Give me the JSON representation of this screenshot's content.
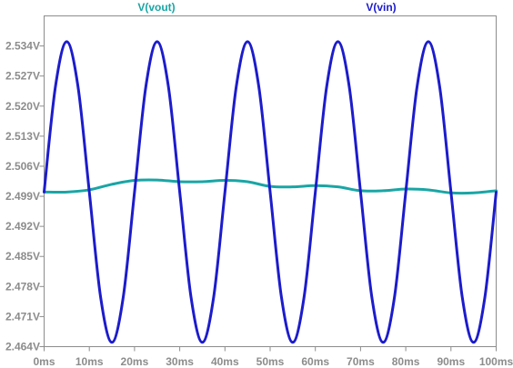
{
  "chart_data": {
    "type": "line",
    "xlim": [
      0,
      100
    ],
    "ylim": [
      2.464,
      2.541
    ],
    "x_ticks": [
      0,
      10,
      20,
      30,
      40,
      50,
      60,
      70,
      80,
      90,
      100
    ],
    "x_tick_labels": [
      "0ms",
      "10ms",
      "20ms",
      "30ms",
      "40ms",
      "50ms",
      "60ms",
      "70ms",
      "80ms",
      "90ms",
      "100ms"
    ],
    "y_ticks": [
      2.464,
      2.471,
      2.478,
      2.485,
      2.492,
      2.499,
      2.506,
      2.513,
      2.52,
      2.527,
      2.534
    ],
    "y_tick_labels": [
      "2.464V",
      "2.471V",
      "2.478V",
      "2.485V",
      "2.492V",
      "2.499V",
      "2.506V",
      "2.513V",
      "2.520V",
      "2.527V",
      "2.534V"
    ],
    "grid": false,
    "legend_position": "top",
    "series": [
      {
        "name": "V(vout)",
        "color": "#1aa5a5",
        "x": [
          0,
          5,
          10,
          15,
          20,
          25,
          30,
          35,
          40,
          45,
          50,
          55,
          60,
          65,
          70,
          75,
          80,
          85,
          90,
          95,
          100
        ],
        "y": [
          2.5,
          2.5,
          2.5005,
          2.5018,
          2.5027,
          2.5028,
          2.5024,
          2.5024,
          2.5027,
          2.5024,
          2.5013,
          2.5012,
          2.5015,
          2.5012,
          2.5003,
          2.5003,
          2.5007,
          2.5005,
          2.4998,
          2.4998,
          2.5003
        ]
      },
      {
        "name": "V(vin)",
        "color": "#1c1ccc",
        "x": [
          0,
          2.5,
          5,
          7.5,
          10,
          12.5,
          15,
          17.5,
          20,
          22.5,
          25,
          27.5,
          30,
          32.5,
          35,
          37.5,
          40,
          42.5,
          45,
          47.5,
          50,
          52.5,
          55,
          57.5,
          60,
          62.5,
          65,
          67.5,
          70,
          72.5,
          75,
          77.5,
          80,
          82.5,
          85,
          87.5,
          90,
          92.5,
          95,
          97.5,
          100
        ],
        "y": [
          2.5,
          2.5245,
          2.535,
          2.5245,
          2.5,
          2.4755,
          2.465,
          2.4755,
          2.5,
          2.5245,
          2.535,
          2.5245,
          2.5,
          2.4755,
          2.465,
          2.4755,
          2.5,
          2.5245,
          2.535,
          2.5245,
          2.5,
          2.4755,
          2.465,
          2.4755,
          2.5,
          2.5245,
          2.535,
          2.5245,
          2.5,
          2.4755,
          2.465,
          2.4755,
          2.5,
          2.5245,
          2.535,
          2.5245,
          2.5,
          2.4755,
          2.465,
          2.4755,
          2.5
        ]
      }
    ]
  }
}
